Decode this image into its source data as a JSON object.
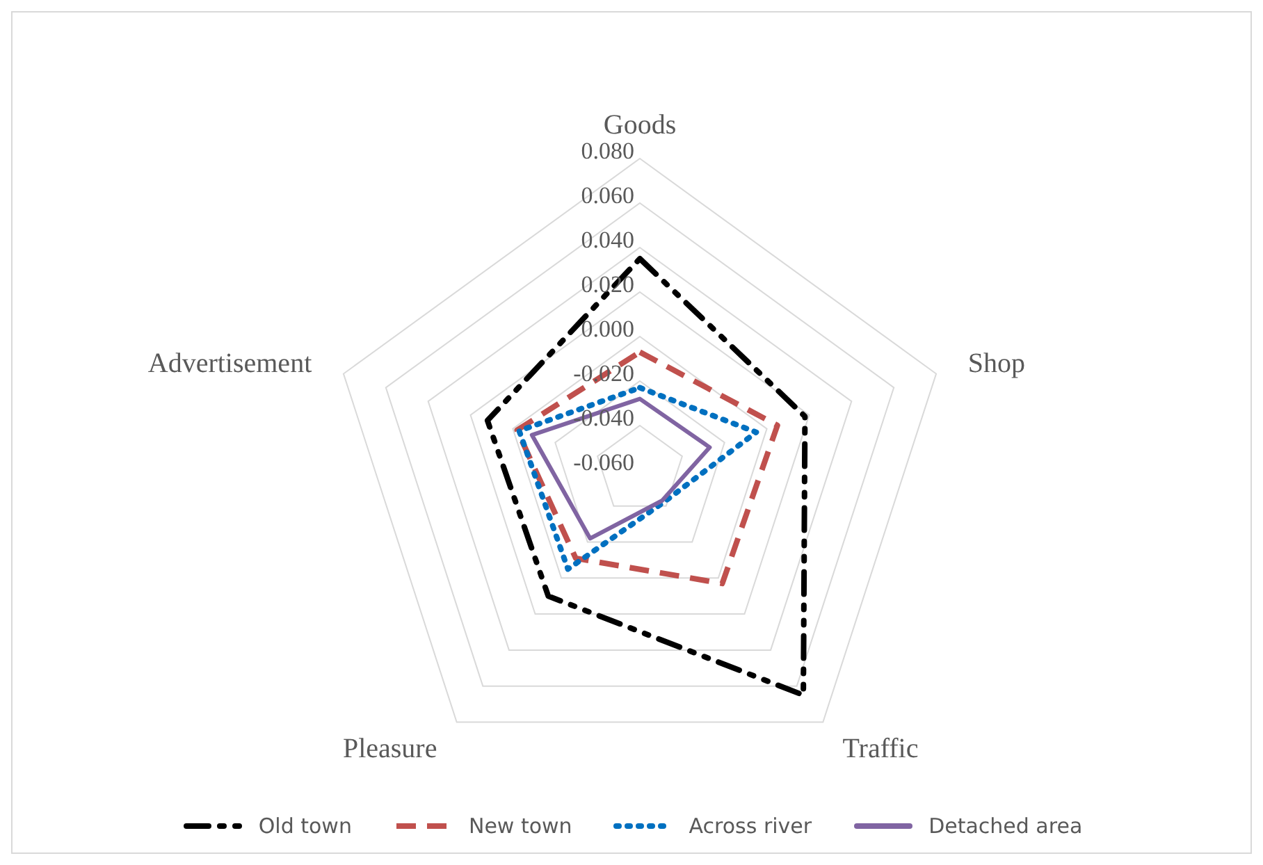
{
  "chart_data": {
    "type": "radar",
    "categories": [
      "Goods",
      "Shop",
      "Traffic",
      "Pleasure",
      "Advertisement"
    ],
    "ylim": [
      -0.06,
      0.08
    ],
    "yticks": [
      {
        "value": -0.06,
        "label": "-0.060"
      },
      {
        "value": -0.04,
        "label": "-0.040"
      },
      {
        "value": -0.02,
        "label": "-0.020"
      },
      {
        "value": 0,
        "label": "0.000"
      },
      {
        "value": 0.02,
        "label": "0.020"
      },
      {
        "value": 0.04,
        "label": "0.040"
      },
      {
        "value": 0.06,
        "label": "0.060"
      },
      {
        "value": 0.08,
        "label": "0.080"
      }
    ],
    "grid": true,
    "legend": "bottom",
    "marker": "none",
    "series": [
      {
        "name": "Old town",
        "color": "#000000",
        "line_style": "dashdot",
        "values": [
          0.035,
          0.018,
          0.065,
          0.01,
          0.012
        ]
      },
      {
        "name": "New town",
        "color": "#c0504d",
        "line_style": "dashed",
        "values": [
          -0.007,
          0.005,
          0.003,
          -0.011,
          -0.002
        ]
      },
      {
        "name": "Across river",
        "color": "#0070c0",
        "line_style": "dotted",
        "values": [
          -0.023,
          -0.005,
          -0.042,
          -0.005,
          -0.003
        ]
      },
      {
        "name": "Detached area",
        "color": "#8064a2",
        "line_style": "solid",
        "values": [
          -0.028,
          -0.027,
          -0.043,
          -0.022,
          -0.009
        ]
      }
    ]
  }
}
